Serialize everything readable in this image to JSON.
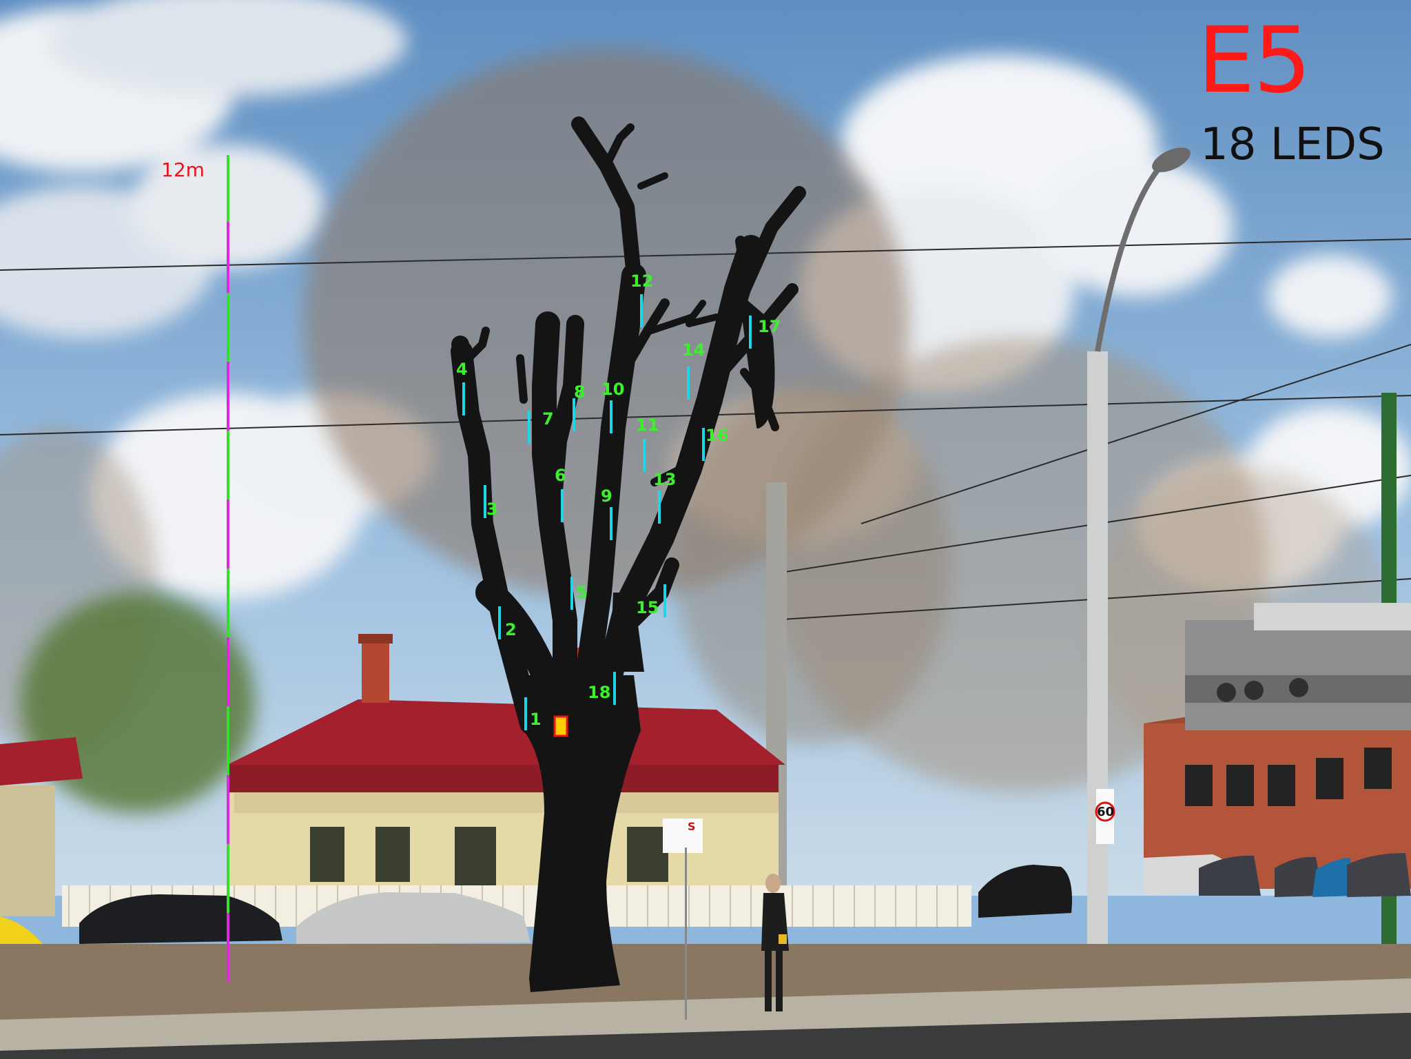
{
  "header": {
    "title": "E5",
    "subtitle": "18 LEDS"
  },
  "scale": {
    "label": "12m",
    "colors": [
      "#35e02a",
      "#e028e0"
    ]
  },
  "led_markers": {
    "color": "#1fd6e6",
    "label_color": "#3cf02c",
    "items": [
      {
        "label": "1"
      },
      {
        "label": "2"
      },
      {
        "label": "3"
      },
      {
        "label": "4"
      },
      {
        "label": "5"
      },
      {
        "label": "6"
      },
      {
        "label": "7"
      },
      {
        "label": "8"
      },
      {
        "label": "9"
      },
      {
        "label": "10"
      },
      {
        "label": "11"
      },
      {
        "label": "12"
      },
      {
        "label": "13"
      },
      {
        "label": "14"
      },
      {
        "label": "15"
      },
      {
        "label": "16"
      },
      {
        "label": "17"
      },
      {
        "label": "18"
      }
    ]
  },
  "scene": {
    "speed_sign": "60",
    "parking_sign": "S"
  },
  "colors": {
    "sky": "#8fb6dc",
    "roof": "#a3202c",
    "house_wall": "#e6d9a8",
    "fence": "#f2efe2",
    "silhouette": "#141414",
    "ground": "#8a7762",
    "sidewalk": "#b7b2a4",
    "road": "#3b3b3c",
    "brick": "#b2553a",
    "marker_box": "#ffcc00"
  }
}
